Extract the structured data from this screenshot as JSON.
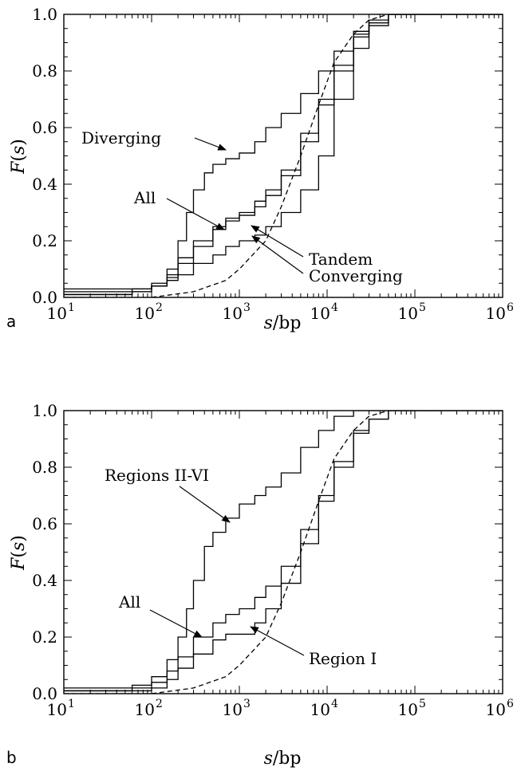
{
  "chart_data": [
    {
      "type": "line",
      "panel": "a",
      "xscale": "log",
      "xlim": [
        10,
        1000000
      ],
      "ylim": [
        0,
        1
      ],
      "xlabel": "s/bp",
      "ylabel": "F(s)",
      "grid": false,
      "legend": "none (curves labeled with arrow annotations)",
      "x_tick_labels": [
        {
          "base": "10",
          "exp": "1"
        },
        {
          "base": "10",
          "exp": "2"
        },
        {
          "base": "10",
          "exp": "3"
        },
        {
          "base": "10",
          "exp": "4"
        },
        {
          "base": "10",
          "exp": "5"
        },
        {
          "base": "10",
          "exp": "6"
        }
      ],
      "y_tick_labels": [
        "0.0",
        "0.2",
        "0.4",
        "0.6",
        "0.8",
        "1.0"
      ],
      "series": [
        {
          "name": "Diverging",
          "style": "step",
          "x": [
            10,
            60,
            100,
            150,
            200,
            250,
            300,
            400,
            500,
            700,
            1000,
            1500,
            2000,
            3000,
            5000,
            8000,
            12000,
            20000,
            30000,
            50000,
            100000
          ],
          "y": [
            0.02,
            0.03,
            0.05,
            0.1,
            0.2,
            0.3,
            0.38,
            0.44,
            0.47,
            0.49,
            0.51,
            0.55,
            0.6,
            0.65,
            0.72,
            0.8,
            0.87,
            0.94,
            0.98,
            1.0,
            1.0
          ]
        },
        {
          "name": "All",
          "style": "step",
          "x": [
            10,
            60,
            100,
            150,
            200,
            300,
            500,
            700,
            1000,
            1500,
            2000,
            3000,
            5000,
            8000,
            12000,
            20000,
            30000,
            50000,
            100000
          ],
          "y": [
            0.01,
            0.02,
            0.04,
            0.08,
            0.14,
            0.2,
            0.25,
            0.28,
            0.3,
            0.34,
            0.38,
            0.45,
            0.58,
            0.7,
            0.82,
            0.93,
            0.97,
            1.0,
            1.0
          ]
        },
        {
          "name": "Tandem",
          "style": "step",
          "x": [
            10,
            60,
            100,
            150,
            200,
            300,
            500,
            700,
            1000,
            1500,
            2000,
            3000,
            5000,
            8000,
            12000,
            20000,
            30000,
            50000,
            100000
          ],
          "y": [
            0.01,
            0.02,
            0.04,
            0.07,
            0.12,
            0.18,
            0.24,
            0.27,
            0.29,
            0.32,
            0.36,
            0.43,
            0.55,
            0.68,
            0.8,
            0.92,
            0.97,
            1.0,
            1.0
          ]
        },
        {
          "name": "Converging",
          "style": "step",
          "x": [
            10,
            60,
            100,
            150,
            200,
            300,
            500,
            700,
            1000,
            1500,
            2000,
            3000,
            5000,
            8000,
            12000,
            20000,
            30000,
            50000,
            100000
          ],
          "y": [
            0.03,
            0.03,
            0.04,
            0.06,
            0.08,
            0.12,
            0.15,
            0.18,
            0.2,
            0.22,
            0.25,
            0.3,
            0.38,
            0.5,
            0.7,
            0.88,
            0.96,
            1.0,
            1.0
          ]
        },
        {
          "style": "dashed",
          "x": [
            10,
            100,
            300,
            700,
            1000,
            2000,
            3000,
            5000,
            8000,
            12000,
            20000,
            30000,
            50000,
            100000
          ],
          "y": [
            0.0,
            0.0,
            0.02,
            0.06,
            0.1,
            0.2,
            0.32,
            0.5,
            0.68,
            0.83,
            0.93,
            0.98,
            1.0,
            1.0
          ]
        }
      ],
      "annotations": [
        {
          "text": "Diverging"
        },
        {
          "text": "All"
        },
        {
          "text": "Tandem"
        },
        {
          "text": "Converging"
        }
      ]
    },
    {
      "type": "line",
      "panel": "b",
      "xscale": "log",
      "xlim": [
        10,
        1000000
      ],
      "ylim": [
        0,
        1
      ],
      "xlabel": "s/bp",
      "ylabel": "F(s)",
      "grid": false,
      "legend": "none (curves labeled with arrow annotations)",
      "x_tick_labels": [
        {
          "base": "10",
          "exp": "1"
        },
        {
          "base": "10",
          "exp": "2"
        },
        {
          "base": "10",
          "exp": "3"
        },
        {
          "base": "10",
          "exp": "4"
        },
        {
          "base": "10",
          "exp": "5"
        },
        {
          "base": "10",
          "exp": "6"
        }
      ],
      "y_tick_labels": [
        "0.0",
        "0.2",
        "0.4",
        "0.6",
        "0.8",
        "1.0"
      ],
      "series": [
        {
          "name": "Regions II-VI",
          "style": "step",
          "x": [
            10,
            60,
            100,
            150,
            200,
            250,
            300,
            400,
            500,
            700,
            1000,
            1500,
            2000,
            3000,
            5000,
            8000,
            12000,
            20000,
            30000,
            50000
          ],
          "y": [
            0.02,
            0.03,
            0.06,
            0.12,
            0.2,
            0.3,
            0.4,
            0.52,
            0.57,
            0.62,
            0.67,
            0.7,
            0.73,
            0.78,
            0.87,
            0.93,
            0.98,
            1.0,
            1.0,
            1.0
          ]
        },
        {
          "name": "All",
          "style": "step",
          "x": [
            10,
            60,
            100,
            150,
            200,
            300,
            500,
            700,
            1000,
            1500,
            2000,
            3000,
            5000,
            8000,
            12000,
            20000,
            30000,
            50000,
            100000
          ],
          "y": [
            0.01,
            0.02,
            0.04,
            0.08,
            0.13,
            0.2,
            0.25,
            0.28,
            0.3,
            0.34,
            0.38,
            0.45,
            0.58,
            0.7,
            0.82,
            0.93,
            0.97,
            1.0,
            1.0
          ]
        },
        {
          "name": "Region I",
          "style": "step",
          "x": [
            10,
            60,
            100,
            150,
            200,
            300,
            500,
            700,
            1000,
            1500,
            2000,
            3000,
            5000,
            8000,
            12000,
            20000,
            30000,
            50000,
            100000
          ],
          "y": [
            0.01,
            0.01,
            0.02,
            0.05,
            0.09,
            0.14,
            0.19,
            0.21,
            0.21,
            0.25,
            0.3,
            0.39,
            0.53,
            0.68,
            0.8,
            0.92,
            0.97,
            1.0,
            1.0
          ]
        },
        {
          "style": "dashed",
          "x": [
            10,
            100,
            300,
            700,
            1000,
            2000,
            3000,
            5000,
            8000,
            12000,
            20000,
            30000,
            50000,
            100000
          ],
          "y": [
            0.0,
            0.0,
            0.02,
            0.06,
            0.1,
            0.2,
            0.32,
            0.5,
            0.68,
            0.83,
            0.93,
            0.98,
            1.0,
            1.0
          ]
        }
      ],
      "annotations": [
        {
          "text": "Regions II-VI"
        },
        {
          "text": "All"
        },
        {
          "text": "Region I"
        }
      ]
    }
  ],
  "panel_letters": [
    "a",
    "b"
  ]
}
